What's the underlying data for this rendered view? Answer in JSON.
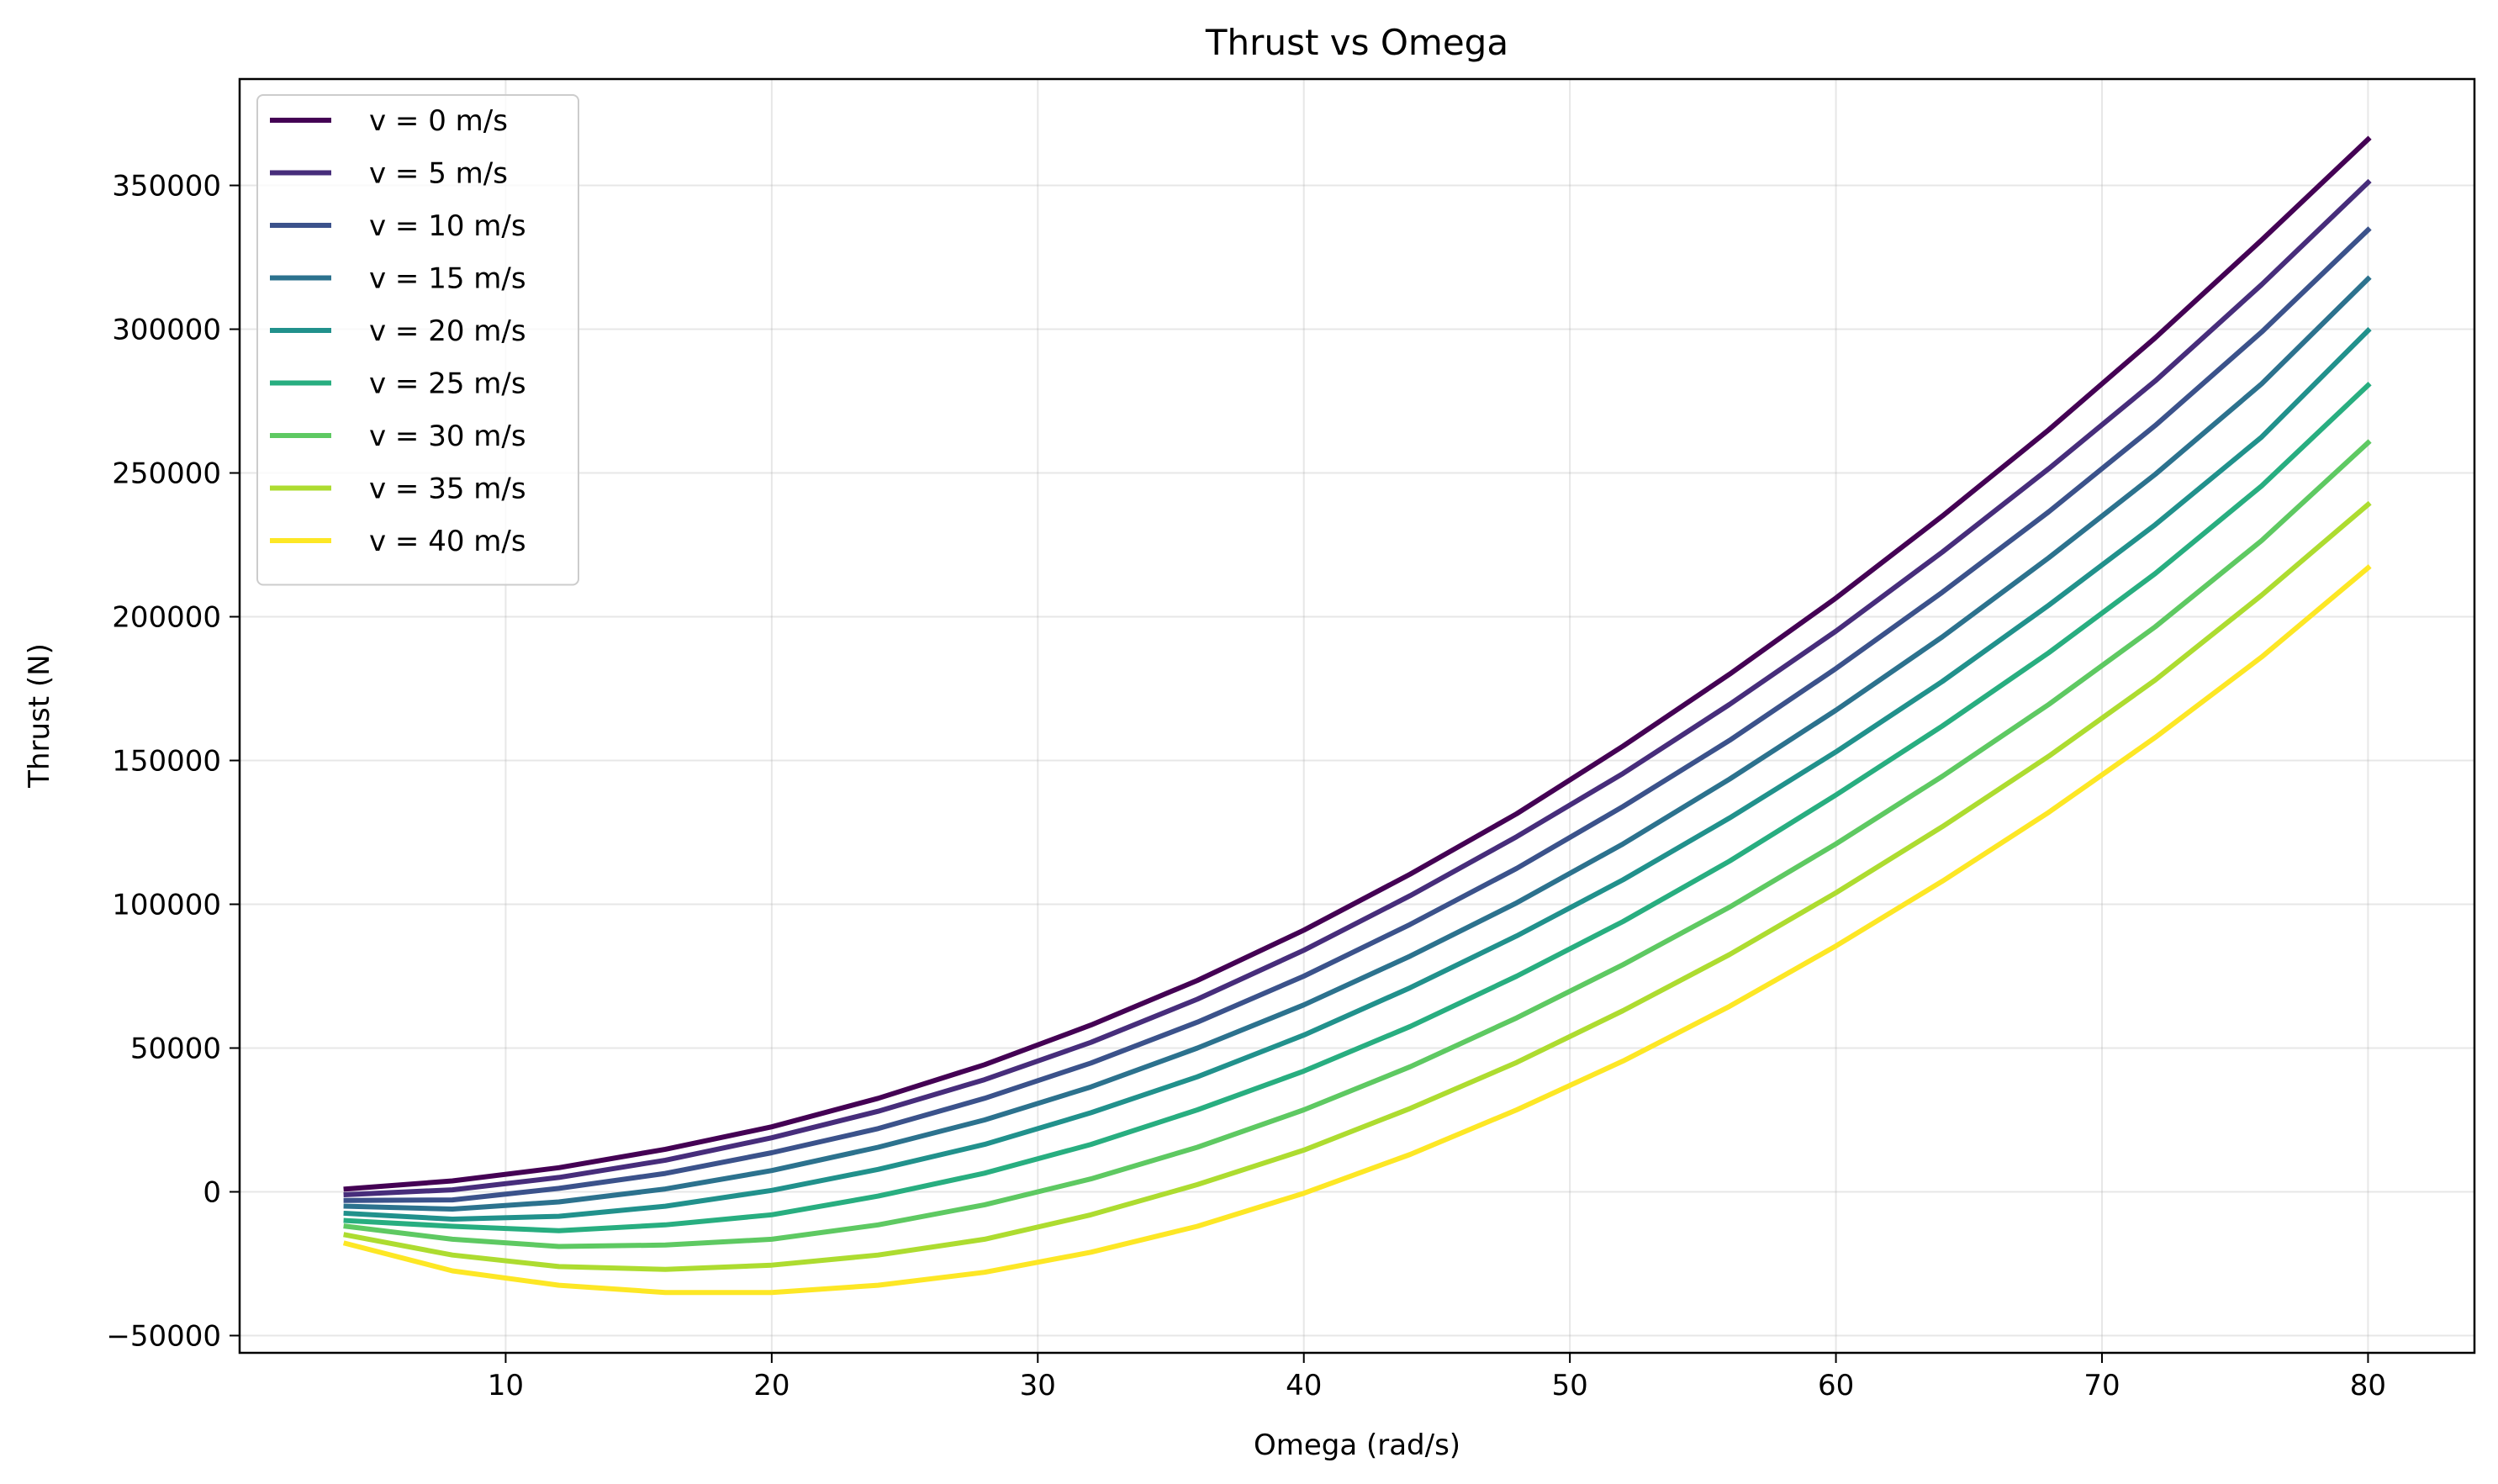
{
  "chart_data": {
    "type": "line",
    "title": "Thrust vs Omega",
    "xlabel": "Omega (rad/s)",
    "ylabel": "Thrust (N)",
    "xlim": [
      0,
      84
    ],
    "ylim": [
      -56000,
      387000
    ],
    "xticks": [
      10,
      20,
      30,
      40,
      50,
      60,
      70,
      80
    ],
    "yticks": [
      -50000,
      0,
      50000,
      100000,
      150000,
      200000,
      250000,
      300000,
      350000
    ],
    "grid": true,
    "legend_position": "top-left",
    "x": [
      4,
      8,
      12,
      16,
      20,
      24,
      28,
      32,
      36,
      40,
      44,
      48,
      52,
      56,
      60,
      64,
      68,
      72,
      76,
      80
    ],
    "series": [
      {
        "name": "v = 0 m/s",
        "color": "#440154",
        "values": [
          1000,
          3800,
          8400,
          14800,
          22600,
          32500,
          44200,
          58000,
          73500,
          91000,
          110500,
          131500,
          155000,
          180000,
          206500,
          235000,
          265000,
          297000,
          331000,
          366000
        ]
      },
      {
        "name": "v = 5 m/s",
        "color": "#472d7b",
        "values": [
          -1000,
          700,
          5000,
          11000,
          18800,
          28000,
          39000,
          52000,
          67000,
          84000,
          103000,
          123500,
          145500,
          169500,
          195000,
          222500,
          251500,
          282000,
          315500,
          351000
        ]
      },
      {
        "name": "v = 10 m/s",
        "color": "#3b528b",
        "values": [
          -3000,
          -2800,
          1200,
          6400,
          13600,
          22000,
          32500,
          44800,
          59000,
          75000,
          93000,
          112500,
          134000,
          157000,
          182000,
          208500,
          236500,
          266500,
          299000,
          334500
        ]
      },
      {
        "name": "v = 15 m/s",
        "color": "#2c728e",
        "values": [
          -5000,
          -6000,
          -3500,
          1000,
          7400,
          15500,
          25000,
          36500,
          50000,
          65000,
          82000,
          100500,
          121000,
          143500,
          167500,
          193000,
          220500,
          249500,
          281000,
          317500
        ]
      },
      {
        "name": "v = 20 m/s",
        "color": "#21918c",
        "values": [
          -7500,
          -9500,
          -8500,
          -5000,
          500,
          7800,
          16500,
          27500,
          40000,
          54500,
          71000,
          89000,
          108500,
          130000,
          153000,
          177500,
          204000,
          232000,
          262500,
          299500
        ]
      },
      {
        "name": "v = 25 m/s",
        "color": "#28ae80",
        "values": [
          -10000,
          -12000,
          -13500,
          -11500,
          -8000,
          -1500,
          6500,
          16500,
          28500,
          42000,
          57500,
          75000,
          94000,
          115000,
          138000,
          162000,
          187500,
          215000,
          245500,
          280500
        ]
      },
      {
        "name": "v = 30 m/s",
        "color": "#5ec962",
        "values": [
          -12000,
          -16500,
          -19000,
          -18500,
          -16500,
          -11500,
          -4500,
          4500,
          15500,
          28500,
          43500,
          60500,
          79000,
          99000,
          121000,
          144500,
          169500,
          196500,
          226500,
          260500
        ]
      },
      {
        "name": "v = 35 m/s",
        "color": "#addc30",
        "values": [
          -15000,
          -22000,
          -26000,
          -27000,
          -25500,
          -22000,
          -16500,
          -8000,
          2500,
          14500,
          29000,
          45000,
          63000,
          82500,
          104000,
          127000,
          151500,
          178000,
          207500,
          239000
        ]
      },
      {
        "name": "v = 40 m/s",
        "color": "#fde725",
        "values": [
          -18000,
          -27500,
          -32500,
          -35000,
          -35000,
          -32500,
          -28000,
          -21000,
          -12000,
          -500,
          13000,
          28500,
          45500,
          64500,
          85500,
          108000,
          132000,
          158000,
          186000,
          217000
        ]
      }
    ]
  }
}
